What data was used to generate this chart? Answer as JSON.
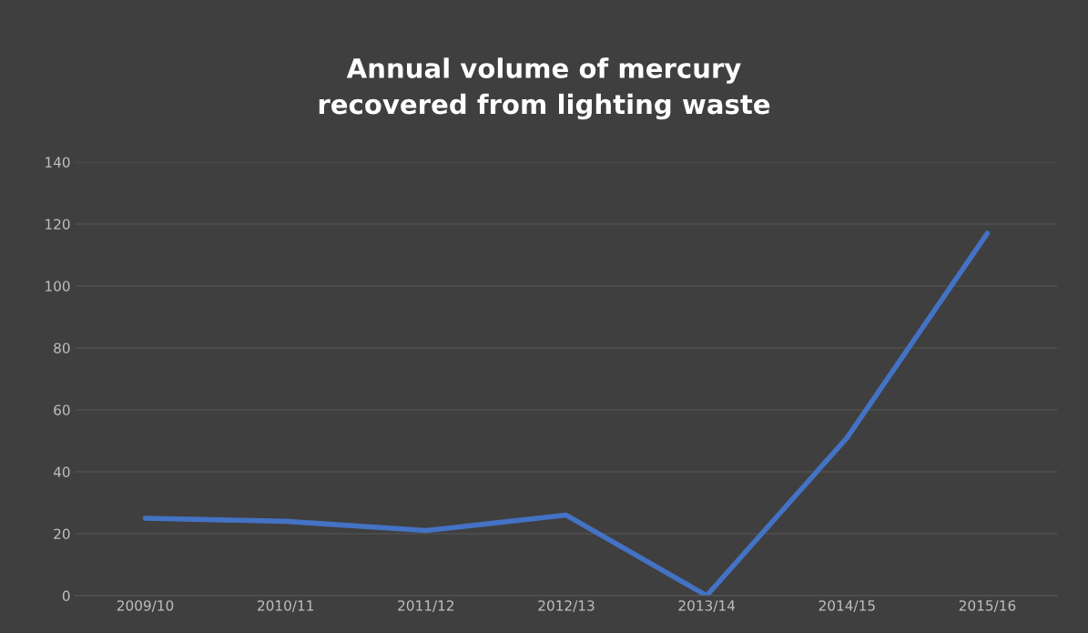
{
  "chart_data": {
    "type": "line",
    "title": "Annual volume of mercury\nrecovered from lighting waste",
    "categories": [
      "2009/10",
      "2010/11",
      "2011/12",
      "2012/13",
      "2013/14",
      "2014/15",
      "2015/16"
    ],
    "series": [
      {
        "color": "#4472c4",
        "values": [
          25,
          24,
          21,
          26,
          0,
          51,
          117
        ]
      }
    ],
    "ylim": [
      0,
      140
    ],
    "yticks": [
      0,
      20,
      40,
      60,
      80,
      100,
      120,
      140
    ],
    "grid": "y",
    "marker": "none",
    "line_style": "solid"
  }
}
